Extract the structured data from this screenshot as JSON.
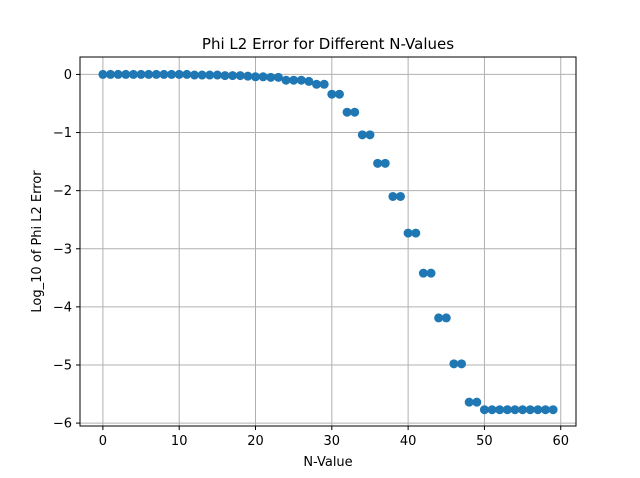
{
  "chart_data": {
    "type": "scatter",
    "title": "Phi L2 Error for Different N-Values",
    "xlabel": "N-Value",
    "ylabel": "Log_10 of Phi L2 Error",
    "xlim": [
      -3,
      62
    ],
    "ylim": [
      -6.05,
      0.3
    ],
    "xticks": [
      0,
      10,
      20,
      30,
      40,
      50,
      60
    ],
    "yticks": [
      0,
      -1,
      -2,
      -3,
      -4,
      -5,
      -6
    ],
    "xtick_labels": [
      "0",
      "10",
      "20",
      "30",
      "40",
      "50",
      "60"
    ],
    "ytick_labels": [
      "0",
      "−1",
      "−2",
      "−3",
      "−4",
      "−5",
      "−6"
    ],
    "grid": true,
    "marker_color": "#1f77b4",
    "series": [
      {
        "x": [
          0,
          1,
          2,
          3,
          4,
          5,
          6,
          7,
          8,
          9,
          10,
          11,
          12,
          13,
          14,
          15,
          16,
          17,
          18,
          19,
          20,
          21,
          22,
          23,
          24,
          25,
          26,
          27,
          28,
          29,
          30,
          31,
          32,
          33,
          34,
          35,
          36,
          37,
          38,
          39,
          40,
          41,
          42,
          43,
          44,
          45,
          46,
          47,
          48,
          49,
          50,
          51,
          52,
          53,
          54,
          55,
          56,
          57,
          58,
          59
        ],
        "y": [
          0,
          0,
          0,
          0,
          0,
          0,
          0,
          0,
          0,
          0,
          0,
          0,
          -0.01,
          -0.01,
          -0.01,
          -0.01,
          -0.02,
          -0.02,
          -0.02,
          -0.03,
          -0.04,
          -0.04,
          -0.05,
          -0.05,
          -0.1,
          -0.1,
          -0.1,
          -0.12,
          -0.17,
          -0.17,
          -0.34,
          -0.34,
          -0.65,
          -0.65,
          -1.04,
          -1.04,
          -1.53,
          -1.53,
          -2.1,
          -2.1,
          -2.73,
          -2.73,
          -3.42,
          -3.42,
          -4.19,
          -4.19,
          -4.98,
          -4.98,
          -5.64,
          -5.64,
          -5.77,
          -5.77,
          -5.77,
          -5.77,
          -5.77,
          -5.77,
          -5.77,
          -5.77,
          -5.77,
          -5.77
        ]
      }
    ]
  }
}
